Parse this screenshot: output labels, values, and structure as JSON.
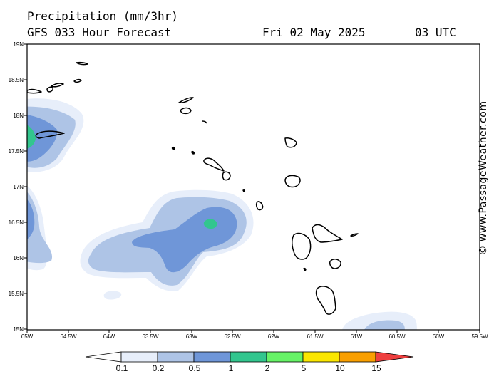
{
  "header": {
    "title": "Precipitation (mm/3hr)",
    "subtitle": "GFS 033 Hour Forecast",
    "date": "Fri 02 May 2025",
    "time": "03 UTC"
  },
  "credit": "© www.PassageWeather.com",
  "axes": {
    "lat_labels": [
      "19N",
      "18.5N",
      "18N",
      "17.5N",
      "17N",
      "16.5N",
      "16N",
      "15.5N",
      "15N"
    ],
    "lon_labels": [
      "65W",
      "64.5W",
      "64W",
      "63.5W",
      "63W",
      "62.5W",
      "62W",
      "61.5W",
      "61W",
      "60.5W",
      "60W",
      "59.5W"
    ]
  },
  "legend": {
    "colors": [
      "#e7eefa",
      "#aec4e6",
      "#6f96d8",
      "#32c68e",
      "#66f266",
      "#fbe600",
      "#f99f00",
      "#ee3f3f"
    ],
    "labels": [
      "0.1",
      "0.2",
      "0.5",
      "1",
      "2",
      "5",
      "10",
      "15"
    ]
  }
}
